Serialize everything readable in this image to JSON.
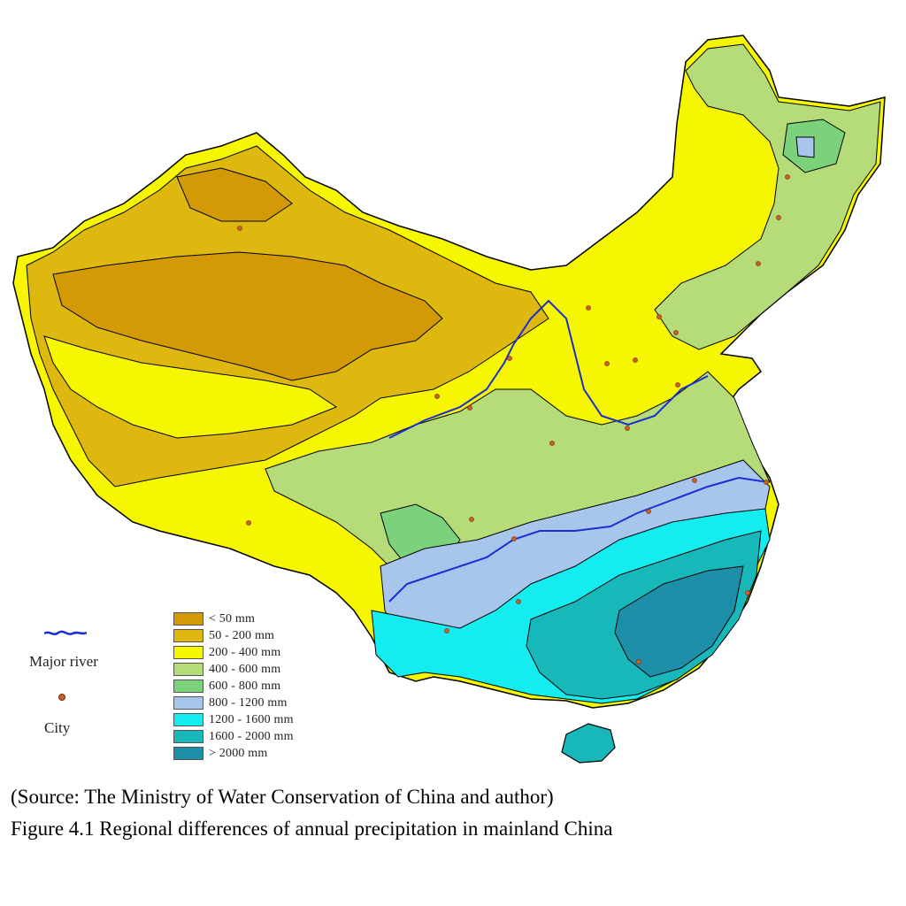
{
  "caption": {
    "source": "(Source: The Ministry of Water Conservation of China and author)",
    "title": "Figure 4.1 Regional differences of annual precipitation in mainland China"
  },
  "legend": {
    "precipitation_classes": [
      {
        "label": "< 50 mm",
        "color": "#d49a05"
      },
      {
        "label": "50 - 200 mm",
        "color": "#deb80e"
      },
      {
        "label": "200 - 400 mm",
        "color": "#f6f600"
      },
      {
        "label": "400 - 600 mm",
        "color": "#b5dc78"
      },
      {
        "label": "600 - 800 mm",
        "color": "#7cd27a"
      },
      {
        "label": "800 - 1200 mm",
        "color": "#a8c6ec"
      },
      {
        "label": "1200 - 1600 mm",
        "color": "#14ecf0"
      },
      {
        "label": "1600 - 2000 mm",
        "color": "#18b8ba"
      },
      {
        "label": "> 2000 mm",
        "color": "#1e8fa8"
      }
    ],
    "river_label": "Major river",
    "city_label": "City",
    "river_color": "#1a2fd0",
    "city_color": "#c4622a"
  }
}
